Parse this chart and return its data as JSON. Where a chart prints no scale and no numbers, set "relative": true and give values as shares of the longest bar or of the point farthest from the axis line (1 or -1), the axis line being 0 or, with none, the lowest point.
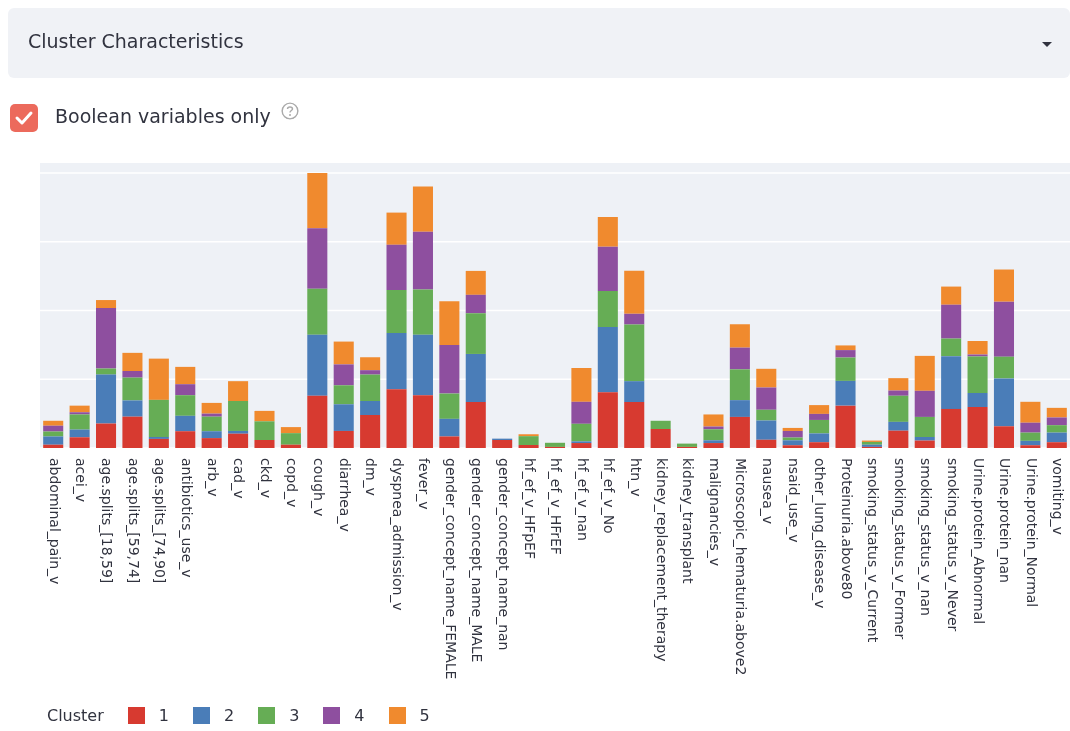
{
  "chart_data": {
    "type": "bar",
    "title": "Cluster Characteristics",
    "annotations": [
      "Boolean variables only"
    ],
    "stacked": true,
    "relative": true,
    "grid": "y",
    "legend": "bottom left",
    "legend_title": "Cluster",
    "categories": [
      "abdominal_pain_v",
      "acei_v",
      "age.splits_[18,59]",
      "age.splits_[59,74]",
      "age.splits_[74,90]",
      "antibiotics_use_v",
      "arb_v",
      "cad_v",
      "ckd_v",
      "copd_v",
      "cough_v",
      "diarrhea_v",
      "dm_v",
      "dyspnea_admission_v",
      "fever_v",
      "gender_concept_name_FEMALE",
      "gender_concept_name_MALE",
      "gender_concept_name_nan",
      "hf_ef_v_HFpEF",
      "hf_ef_v_HFrEF",
      "hf_ef_v_nan",
      "hf_ef_v_No",
      "htn_v",
      "kidney_replacement_therapy",
      "kidney_transplant",
      "malignancies_v",
      "Microscopic_hematuria.above2",
      "nausea_v",
      "nsaid_use_v",
      "other_lung_disease_v",
      "Proteinuria.above80",
      "smoking_status_v_Current",
      "smoking_status_v_Former",
      "smoking_status_v_nan",
      "smoking_status_v_Never",
      "Urine.protein_Abnormal",
      "Urine.protein_nan",
      "Urine.protein_Normal",
      "vomiting_v"
    ],
    "series": [
      {
        "name": "1",
        "color": "#d73a30",
        "values": [
          0.012,
          0.039,
          0.089,
          0.114,
          0.033,
          0.061,
          0.036,
          0.052,
          0.029,
          0.012,
          0.19,
          0.062,
          0.12,
          0.214,
          0.192,
          0.042,
          0.167,
          0.029,
          0.011,
          0.004,
          0.018,
          0.203,
          0.167,
          0.069,
          0.004,
          0.018,
          0.113,
          0.03,
          0.01,
          0.021,
          0.154,
          0.004,
          0.063,
          0.027,
          0.142,
          0.149,
          0.079,
          0.01,
          0.021
        ]
      },
      {
        "name": "2",
        "color": "#4a7db8",
        "values": [
          0.03,
          0.028,
          0.178,
          0.059,
          0.007,
          0.056,
          0.025,
          0.01,
          0,
          0,
          0.222,
          0.097,
          0.051,
          0.204,
          0.22,
          0.064,
          0.175,
          0.005,
          0,
          0,
          0.006,
          0.237,
          0.076,
          0,
          0,
          0.01,
          0.061,
          0.07,
          0.018,
          0.032,
          0.09,
          0.008,
          0.032,
          0.013,
          0.192,
          0.051,
          0.174,
          0.016,
          0.035
        ]
      },
      {
        "name": "3",
        "color": "#66ad55",
        "values": [
          0.018,
          0.055,
          0.022,
          0.083,
          0.135,
          0.075,
          0.053,
          0.109,
          0.068,
          0.042,
          0.167,
          0.069,
          0.096,
          0.157,
          0.164,
          0.092,
          0.148,
          0,
          0.032,
          0.015,
          0.064,
          0.131,
          0.206,
          0.03,
          0.012,
          0.04,
          0.112,
          0.039,
          0.01,
          0.049,
          0.085,
          0.01,
          0.095,
          0.073,
          0.064,
          0.133,
          0.079,
          0.03,
          0.027
        ]
      },
      {
        "name": "4",
        "color": "#8e4f9f",
        "values": [
          0.021,
          0.008,
          0.22,
          0.024,
          0,
          0.04,
          0.011,
          0,
          0,
          0,
          0.22,
          0.076,
          0.016,
          0.164,
          0.21,
          0.177,
          0.067,
          0,
          0,
          0,
          0.08,
          0.161,
          0.039,
          0,
          0,
          0.01,
          0.079,
          0.081,
          0.024,
          0.022,
          0.027,
          0,
          0.019,
          0.095,
          0.123,
          0.007,
          0.2,
          0.036,
          0.028
        ]
      },
      {
        "name": "5",
        "color": "#f08a2e",
        "values": [
          0.018,
          0.024,
          0.029,
          0.066,
          0.15,
          0.063,
          0.039,
          0.072,
          0.038,
          0.022,
          0.201,
          0.083,
          0.047,
          0.117,
          0.165,
          0.159,
          0.087,
          0,
          0.007,
          0,
          0.123,
          0.108,
          0.157,
          0,
          0,
          0.044,
          0.085,
          0.068,
          0.011,
          0.032,
          0.017,
          0.005,
          0.045,
          0.127,
          0.066,
          0.049,
          0.117,
          0.076,
          0.035
        ]
      }
    ]
  }
}
